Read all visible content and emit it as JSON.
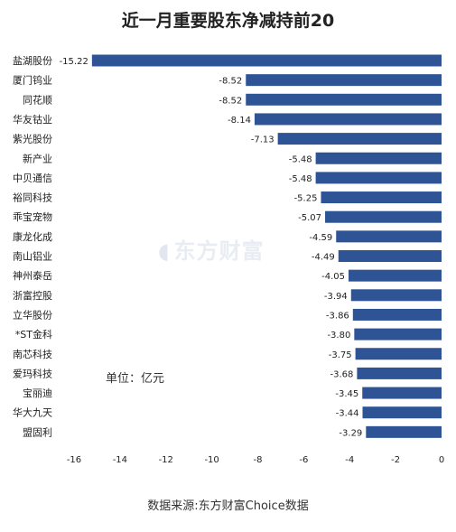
{
  "page": {
    "title": "近一月重要股东净减持前20",
    "unit_note": "单位：亿元",
    "source_note": "数据来源:东方财富Choice数据",
    "watermark": "东方财富"
  },
  "colors": {
    "bar": "#2e5496",
    "axis": "#bfbfbf",
    "text": "#222222"
  },
  "chart_data": {
    "type": "bar",
    "orientation": "horizontal",
    "title": "近一月重要股东净减持前20",
    "xlabel": "",
    "ylabel": "",
    "xlim": [
      -16,
      0
    ],
    "xticks": [
      -16,
      -14,
      -12,
      -10,
      -8,
      -6,
      -4,
      -2,
      0
    ],
    "grid": false,
    "legend": "none",
    "categories": [
      "盐湖股份",
      "厦门钨业",
      "同花顺",
      "华友钴业",
      "紫光股份",
      "新产业",
      "中贝通信",
      "裕同科技",
      "乖宝宠物",
      "康龙化成",
      "南山铝业",
      "神州泰岳",
      "浙富控股",
      "立华股份",
      "*ST金科",
      "南芯科技",
      "爱玛科技",
      "宝丽迪",
      "华大九天",
      "盟固利"
    ],
    "values": [
      -15.22,
      -8.52,
      -8.52,
      -8.14,
      -7.13,
      -5.48,
      -5.48,
      -5.25,
      -5.07,
      -4.59,
      -4.49,
      -4.05,
      -3.94,
      -3.86,
      -3.8,
      -3.75,
      -3.68,
      -3.45,
      -3.44,
      -3.29
    ],
    "value_labels": [
      "-15.22",
      "-8.52",
      "-8.52",
      "-8.14",
      "-7.13",
      "-5.48",
      "-5.48",
      "-5.25",
      "-5.07",
      "-4.59",
      "-4.49",
      "-4.05",
      "-3.94",
      "-3.86",
      "-3.80",
      "-3.75",
      "-3.68",
      "-3.45",
      "-3.44",
      "-3.29"
    ]
  }
}
